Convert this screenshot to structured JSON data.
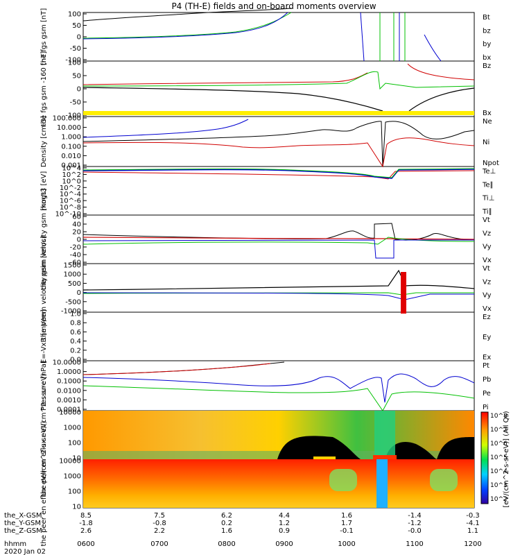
{
  "title": "P4 (TH-E) fields and on-board moments overview",
  "time_label": "hhmm",
  "date_label": "2020 Jan 02",
  "chart_data": [
    {
      "type": "line",
      "ylabel": "the fgs gsm [nT]",
      "yticks": [
        "100",
        "50",
        "0",
        "-50",
        "-100"
      ],
      "ylim": [
        -100,
        100
      ],
      "legend": [
        {
          "label": "Bt",
          "color": "#000000"
        },
        {
          "label": "bz",
          "color": "#d00000"
        },
        {
          "label": "by",
          "color": "#00c000"
        },
        {
          "label": "bx",
          "color": "#0000d0"
        }
      ]
    },
    {
      "type": "line",
      "ylabel": "the fgs gsm -160 [nT]",
      "yticks": [
        "100",
        "50",
        "0",
        "-50",
        "-100"
      ],
      "ylim": [
        -100,
        100
      ],
      "legend": [
        {
          "label": "Bz",
          "color": "#d00000"
        },
        {
          "label": "Bx",
          "color": "#00c000"
        }
      ]
    },
    {
      "type": "line",
      "ylabel": "Density [cm-3]",
      "yticks": [
        "100.000",
        "10.000",
        "1.000",
        "0.100",
        "0.010",
        "0.001"
      ],
      "yscale": "log",
      "legend": [
        {
          "label": "Ne",
          "color": "#d00000"
        },
        {
          "label": "Ni",
          "color": "#000000"
        },
        {
          "label": "Npot",
          "color": "#0000d0"
        }
      ]
    },
    {
      "type": "line",
      "ylabel": "mogt3 [eV]",
      "yticks": [
        "10^4",
        "10^2",
        "10^0",
        "10^-2",
        "10^-4",
        "10^-6",
        "10^-8",
        "10^-10"
      ],
      "yscale": "log",
      "legend": [
        {
          "label": "Te⊥",
          "color": "#d00000"
        },
        {
          "label": "Te∥",
          "color": "#000000"
        },
        {
          "label": "Ti⊥",
          "color": "#0000d0"
        },
        {
          "label": "Ti∥",
          "color": "#00c000"
        }
      ]
    },
    {
      "type": "line",
      "ylabel": "the peim velocity gsm [km/s]",
      "yticks": [
        "60",
        "40",
        "20",
        "0",
        "-20",
        "-40",
        "-60"
      ],
      "ylim": [
        -60,
        60
      ],
      "legend": [
        {
          "label": "Vt",
          "color": "#000000"
        },
        {
          "label": "Vz",
          "color": "#d00000"
        },
        {
          "label": "Vy",
          "color": "#00c000"
        },
        {
          "label": "Vx",
          "color": "#0000d0"
        }
      ]
    },
    {
      "type": "line",
      "ylabel": "the peem velocity gsm [km/s]",
      "yticks": [
        "1500",
        "1000",
        "500",
        "0",
        "-500",
        "-1000"
      ],
      "ylim": [
        -1000,
        1500
      ],
      "legend": [
        {
          "label": "Vt",
          "color": "#000000"
        },
        {
          "label": "Vz",
          "color": "#d00000"
        },
        {
          "label": "Vy",
          "color": "#00c000"
        },
        {
          "label": "Vx",
          "color": "#0000d0"
        }
      ]
    },
    {
      "type": "line",
      "ylabel": "E=-VxB [mV/m]",
      "yticks": [
        "1.0",
        "0.8",
        "0.6",
        "0.4",
        "0.2",
        "0.0"
      ],
      "ylim": [
        0,
        1
      ],
      "legend": [
        {
          "label": "Ez",
          "color": "#d00000"
        },
        {
          "label": "Ey",
          "color": "#00c000"
        },
        {
          "label": "Ex",
          "color": "#0000d0"
        }
      ]
    },
    {
      "type": "line",
      "ylabel": "Pressure [nPa]",
      "yticks": [
        "10.0000",
        "1.0000",
        "0.1000",
        "0.0100",
        "0.0010",
        "0.0001"
      ],
      "yscale": "log",
      "legend": [
        {
          "label": "Pt",
          "color": "#000000"
        },
        {
          "label": "Pb",
          "color": "#d00000"
        },
        {
          "label": "Pe",
          "color": "#00c000"
        },
        {
          "label": "Pi",
          "color": "#0000d0"
        }
      ]
    },
    {
      "type": "heatmap",
      "ylabel": "the peir en eflux eV/(cm^2-s-sr-eV)",
      "yticks": [
        "10000",
        "1000",
        "100",
        "10"
      ],
      "yscale": "log"
    },
    {
      "type": "heatmap",
      "ylabel": "the peer en eflux eV/(cm^2-s-sr-eV)",
      "yticks": [
        "10000",
        "1000",
        "100",
        "10"
      ],
      "yscale": "log"
    }
  ],
  "colorbar_ticks": [
    "10^8",
    "10^7",
    "10^6",
    "10^5",
    "10^4",
    "10^3",
    "10^2"
  ],
  "colorbar_label": "[eV/(cm^2-s-sr-eV)] (All Qs)",
  "xaxis": {
    "time": [
      "0600",
      "0700",
      "0800",
      "0900",
      "1000",
      "1100",
      "1200"
    ],
    "rows": [
      {
        "label": "the_X-GSM",
        "values": [
          "8.5",
          "7.5",
          "6.2",
          "4.4",
          "1.6",
          "-1.4",
          "-0.3"
        ]
      },
      {
        "label": "the_Y-GSM",
        "values": [
          "-1.8",
          "-0.8",
          "0.2",
          "1.2",
          "1.7",
          "-1.2",
          "-4.1"
        ]
      },
      {
        "label": "the_Z-GSM",
        "values": [
          "2.6",
          "2.2",
          "1.6",
          "0.9",
          "-0.1",
          "-0.0",
          "1.1"
        ]
      }
    ]
  }
}
